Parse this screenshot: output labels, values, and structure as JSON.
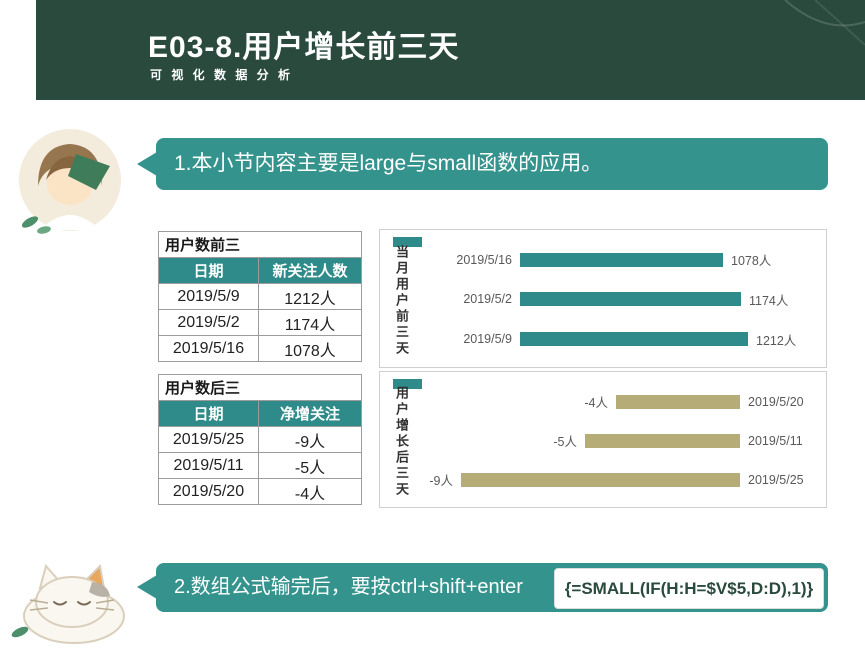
{
  "header": {
    "title": "E03-8.用户增长前三天",
    "subtitle": "可 视 化 数 据 分 析"
  },
  "notes": {
    "note1": "1.本小节内容主要是large与small函数的应用。",
    "note2": "2.数组公式输完后，要按ctrl+shift+enter",
    "formula": "{=SMALL(IF(H:H=$V$5,D:D),1)}"
  },
  "tables": {
    "top": {
      "title": "用户数前三",
      "columns": [
        "日期",
        "新关注人数"
      ],
      "rows": [
        [
          "2019/5/9",
          "1212人"
        ],
        [
          "2019/5/2",
          "1174人"
        ],
        [
          "2019/5/16",
          "1078人"
        ]
      ]
    },
    "bottom": {
      "title": "用户数后三",
      "columns": [
        "日期",
        "净增关注"
      ],
      "rows": [
        [
          "2019/5/25",
          "-9人"
        ],
        [
          "2019/5/11",
          "-5人"
        ],
        [
          "2019/5/20",
          "-4人"
        ]
      ]
    }
  },
  "chart_data": [
    {
      "type": "bar",
      "orientation": "horizontal",
      "axis_title": "当月用户前三天",
      "categories": [
        "2019/5/16",
        "2019/5/2",
        "2019/5/9"
      ],
      "values": [
        1078,
        1174,
        1212
      ],
      "data_labels": [
        "1078人",
        "1174人",
        "1212人"
      ],
      "bar_color": "#2e8b89",
      "legend_color": "#2e8b89",
      "xlim": [
        0,
        1300
      ],
      "grid": false,
      "legend_position": "top-left"
    },
    {
      "type": "bar",
      "orientation": "horizontal",
      "axis_title": "用户增长后三天",
      "categories": [
        "2019/5/20",
        "2019/5/11",
        "2019/5/25"
      ],
      "values": [
        -4,
        -5,
        -9
      ],
      "data_labels": [
        "-4人",
        "-5人",
        "-9人"
      ],
      "bar_color": "#b5ac77",
      "legend_color": "#2e8b89",
      "xlim": [
        -10,
        0
      ],
      "grid": false,
      "legend_position": "top-left"
    }
  ],
  "colors": {
    "header_bg": "#294a3c",
    "accent_teal": "#35938d",
    "table_header_bg": "#2e8b89",
    "bar_teal": "#2e8b89",
    "bar_olive": "#b5ac77",
    "formula_text": "#294a3c"
  }
}
